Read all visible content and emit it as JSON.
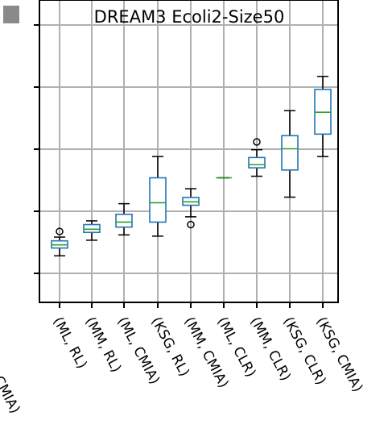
{
  "chart_data": {
    "type": "boxplot",
    "title": "DREAM3 Ecoli2-Size50",
    "xlabel": "",
    "ylabel": "",
    "ylim": [
      0,
      1
    ],
    "grid": true,
    "legend": "none",
    "colors": {
      "box": "#1f77b4",
      "median": "#2ca02c",
      "grid": "#b0b0b0",
      "axis": "#000000"
    },
    "left_outside_label": "CMIA)",
    "categories": [
      "(ML, RL)",
      "(MM, RL)",
      "(ML, CMIA)",
      "(KSG, RL)",
      "(MM, CMIA)",
      "(ML, CLR)",
      "(MM, CLR)",
      "(KSG, CLR)",
      "(KSG, CMIA)"
    ],
    "boxes": [
      {
        "whislo": 0.25,
        "q1": 0.275,
        "med": 0.285,
        "q3": 0.298,
        "whishi": 0.31,
        "fliers": [
          0.328
        ]
      },
      {
        "whislo": 0.3,
        "q1": 0.325,
        "med": 0.335,
        "q3": 0.35,
        "whishi": 0.362,
        "fliers": []
      },
      {
        "whislo": 0.317,
        "q1": 0.342,
        "med": 0.358,
        "q3": 0.383,
        "whishi": 0.417,
        "fliers": []
      },
      {
        "whislo": 0.313,
        "q1": 0.358,
        "med": 0.42,
        "q3": 0.5,
        "whishi": 0.568,
        "fliers": []
      },
      {
        "whislo": 0.375,
        "q1": 0.412,
        "med": 0.423,
        "q3": 0.437,
        "whishi": 0.465,
        "fliers": [
          0.35
        ]
      },
      {
        "whislo": 0.5,
        "q1": 0.5,
        "med": 0.5,
        "q3": 0.5,
        "whishi": 0.5,
        "fliers": []
      },
      {
        "whislo": 0.505,
        "q1": 0.532,
        "med": 0.542,
        "q3": 0.565,
        "whishi": 0.59,
        "fliers": [
          0.615
        ]
      },
      {
        "whislo": 0.438,
        "q1": 0.525,
        "med": 0.593,
        "q3": 0.635,
        "whishi": 0.715,
        "fliers": []
      },
      {
        "whislo": 0.568,
        "q1": 0.64,
        "med": 0.71,
        "q3": 0.783,
        "whishi": 0.825,
        "fliers": []
      }
    ]
  }
}
